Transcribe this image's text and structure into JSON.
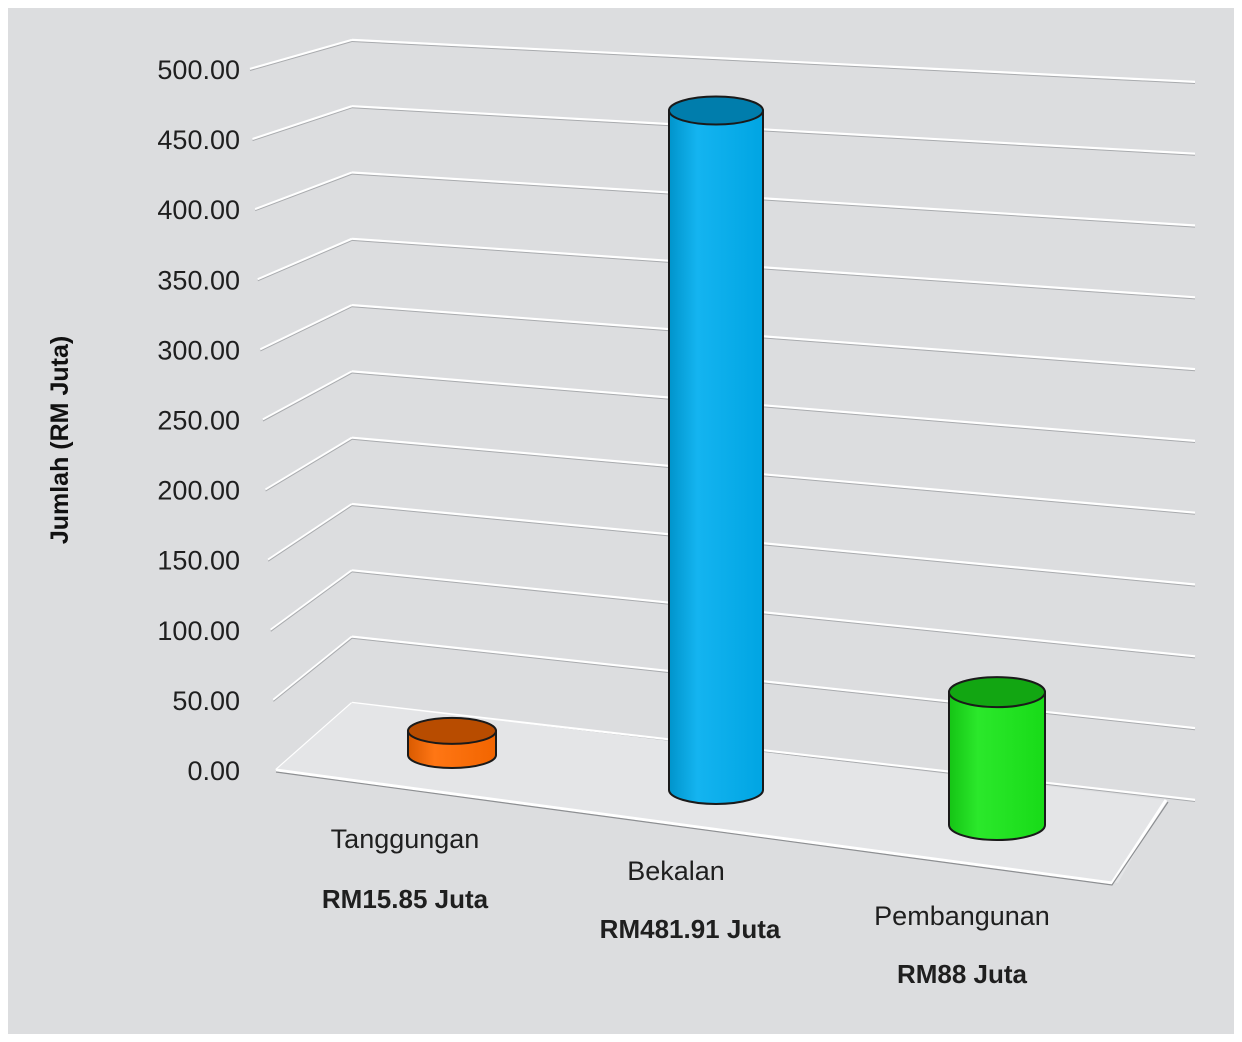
{
  "chart_data": {
    "type": "bar",
    "style": "3d-cylinder",
    "ylabel": "Jumlah (RM Juta)",
    "ylim": [
      0,
      500
    ],
    "y_ticks": [
      "0.00",
      "50.00",
      "100.00",
      "150.00",
      "200.00",
      "250.00",
      "300.00",
      "350.00",
      "400.00",
      "450.00",
      "500.00"
    ],
    "grid": true,
    "categories": [
      "Tanggungan",
      "Bekalan",
      "Pembangunan"
    ],
    "values": [
      15.85,
      481.91,
      88
    ],
    "data_labels": [
      "RM15.85 Juta",
      "RM481.91 Juta",
      "RM88 Juta"
    ],
    "colors": [
      "#ff6a00",
      "#00aeef",
      "#19e619"
    ]
  }
}
